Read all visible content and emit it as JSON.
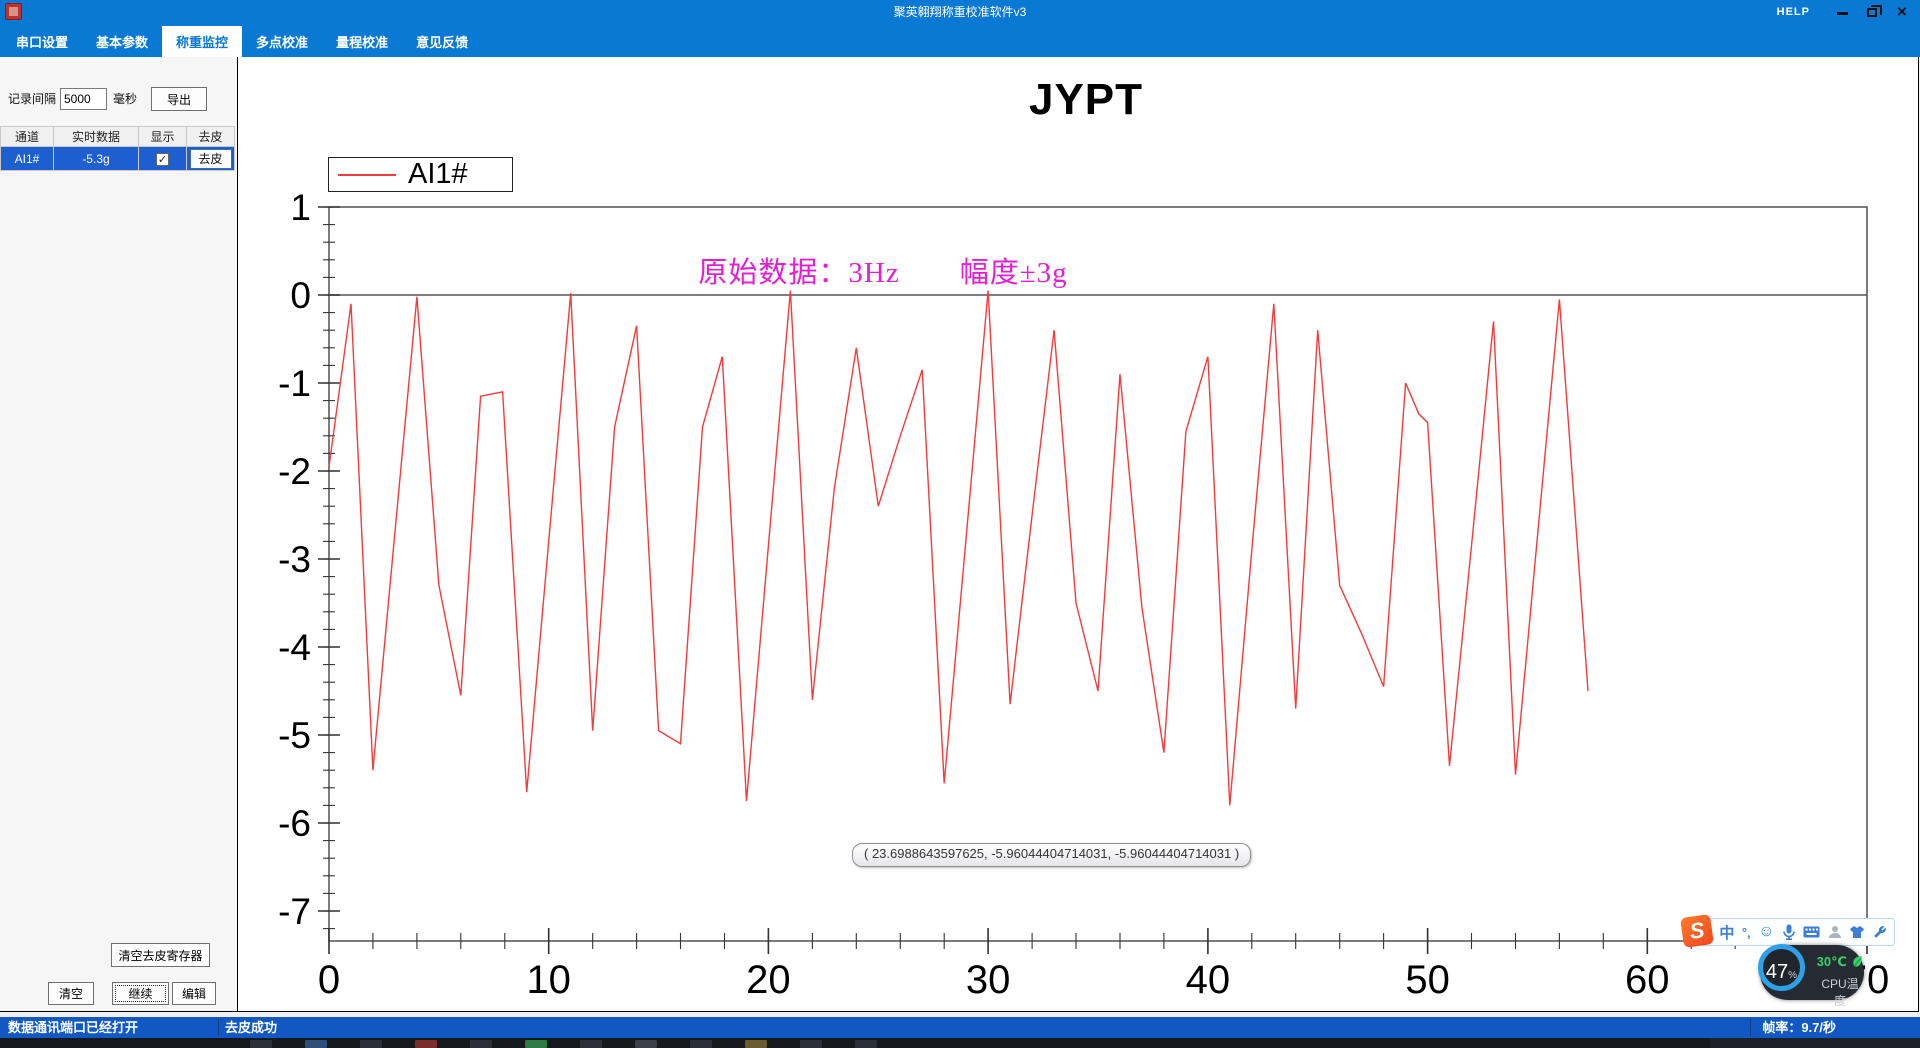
{
  "window": {
    "title": "聚英翱翔称重校准软件v3",
    "help_label": "HELP"
  },
  "tabs": [
    {
      "label": "串口设置",
      "active": false
    },
    {
      "label": "基本参数",
      "active": false
    },
    {
      "label": "称重监控",
      "active": true
    },
    {
      "label": "多点校准",
      "active": false
    },
    {
      "label": "量程校准",
      "active": false
    },
    {
      "label": "意见反馈",
      "active": false
    }
  ],
  "sidebar": {
    "interval_label": "记录间隔",
    "interval_value": "5000",
    "interval_unit": "毫秒",
    "export_button": "导出",
    "table": {
      "headers": [
        "通道",
        "实时数据",
        "显示",
        "去皮"
      ],
      "row": {
        "channel": "AI1#",
        "value": "-5.3g",
        "checked": "✓",
        "tare_button": "去皮"
      }
    },
    "clear_tare_register_button": "清空去皮寄存器",
    "clear_button": "清空",
    "continue_button": "继续",
    "edit_button": "编辑"
  },
  "chart_data": {
    "type": "line",
    "title": "JYPT",
    "legend": [
      "AI1#"
    ],
    "legend_position": "top-left",
    "annotation": "原始数据：3Hz　　幅度±3g",
    "annotation_color": "#e31fd3",
    "series_color": "#f23b3b",
    "xlim": [
      0,
      70
    ],
    "ylim": [
      -7,
      1
    ],
    "x_ticks": [
      0,
      10,
      20,
      30,
      40,
      50,
      60,
      70
    ],
    "y_ticks": [
      1,
      0,
      -1,
      -2,
      -3,
      -4,
      -5,
      -6,
      -7
    ],
    "x_minor_step": 2,
    "y_minor_step": 0.2,
    "grid": "zero-line-only",
    "points": [
      [
        0,
        -1.95
      ],
      [
        0.3,
        -1.4
      ],
      [
        1,
        -0.1
      ],
      [
        2,
        -5.4
      ],
      [
        3,
        -2.7
      ],
      [
        4,
        -0.02
      ],
      [
        5,
        -3.3
      ],
      [
        6,
        -4.55
      ],
      [
        6.9,
        -1.15
      ],
      [
        7.9,
        -1.1
      ],
      [
        9,
        -5.65
      ],
      [
        10,
        -2.8
      ],
      [
        11,
        0.02
      ],
      [
        12,
        -4.95
      ],
      [
        13,
        -1.5
      ],
      [
        14,
        -0.35
      ],
      [
        15,
        -4.95
      ],
      [
        16,
        -5.1
      ],
      [
        17,
        -1.5
      ],
      [
        17.9,
        -0.7
      ],
      [
        19,
        -5.75
      ],
      [
        20,
        -2.85
      ],
      [
        21,
        0.05
      ],
      [
        22,
        -4.6
      ],
      [
        23,
        -2.2
      ],
      [
        24,
        -0.6
      ],
      [
        25,
        -2.4
      ],
      [
        26,
        -1.6
      ],
      [
        27,
        -0.85
      ],
      [
        28,
        -5.55
      ],
      [
        29,
        -2.75
      ],
      [
        30,
        0.05
      ],
      [
        31,
        -4.65
      ],
      [
        32,
        -2.5
      ],
      [
        33,
        -0.4
      ],
      [
        34,
        -3.5
      ],
      [
        35,
        -4.5
      ],
      [
        36,
        -0.9
      ],
      [
        37,
        -3.55
      ],
      [
        38,
        -5.2
      ],
      [
        39,
        -1.55
      ],
      [
        40,
        -0.7
      ],
      [
        41,
        -5.8
      ],
      [
        42,
        -2.9
      ],
      [
        43,
        -0.1
      ],
      [
        44,
        -4.7
      ],
      [
        45,
        -0.4
      ],
      [
        46,
        -3.3
      ],
      [
        47,
        -3.85
      ],
      [
        48,
        -4.45
      ],
      [
        49,
        -1.0
      ],
      [
        49.6,
        -1.35
      ],
      [
        50,
        -1.45
      ],
      [
        51,
        -5.35
      ],
      [
        52,
        -2.85
      ],
      [
        53,
        -0.3
      ],
      [
        54,
        -5.45
      ],
      [
        55,
        -2.75
      ],
      [
        56,
        -0.05
      ],
      [
        57.3,
        -4.5
      ]
    ],
    "tooltip": "( 23.6988643597625, -5.96044404714031, -5.96044404714031 )"
  },
  "ime": {
    "lang_icon_label": "中",
    "punct_icon_label": "°‚",
    "emoji_icon_label": "☺",
    "logo_label": "S",
    "icons": [
      "sogou-logo",
      "chinese-english-toggle",
      "punctuation-toggle",
      "emoji",
      "microphone",
      "soft-keyboard",
      "account",
      "skin",
      "settings-wrench"
    ]
  },
  "cpu_widget": {
    "percent": "47",
    "percent_unit": "%",
    "temperature": "30℃",
    "temperature_label": "CPU温度"
  },
  "status_bar": {
    "left": "数据通讯端口已经打开",
    "middle": "去皮成功",
    "right": "帧率：9.7/秒"
  }
}
